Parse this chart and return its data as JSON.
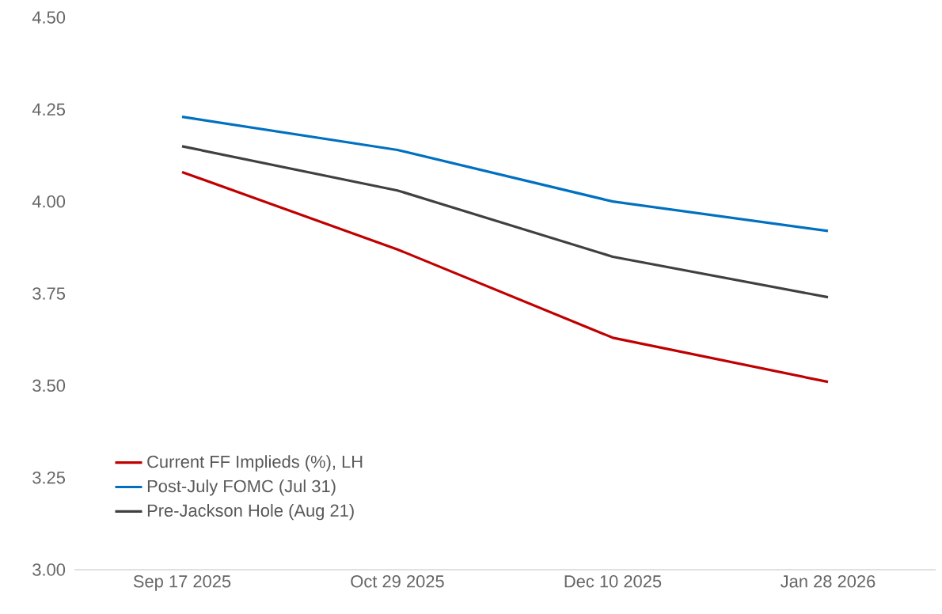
{
  "chart_data": {
    "type": "line",
    "categories": [
      "Sep 17 2025",
      "Oct 29 2025",
      "Dec 10 2025",
      "Jan 28 2026"
    ],
    "series": [
      {
        "name": "Current FF Implieds (%), LH",
        "color": "#c00000",
        "values": [
          4.08,
          3.87,
          3.63,
          3.51
        ]
      },
      {
        "name": "Post-July FOMC (Jul 31)",
        "color": "#0070c0",
        "values": [
          4.23,
          4.14,
          4.0,
          3.92
        ]
      },
      {
        "name": "Pre-Jackson Hole (Aug 21)",
        "color": "#404040",
        "values": [
          4.15,
          4.03,
          3.85,
          3.74
        ]
      }
    ],
    "ylim": [
      3.0,
      4.5
    ],
    "yticks": [
      {
        "value": 3.0,
        "label": "3.00"
      },
      {
        "value": 3.25,
        "label": "3.25"
      },
      {
        "value": 3.5,
        "label": "3.50"
      },
      {
        "value": 3.75,
        "label": "3.75"
      },
      {
        "value": 4.0,
        "label": "4.00"
      },
      {
        "value": 4.25,
        "label": "4.25"
      },
      {
        "value": 4.5,
        "label": "4.50"
      }
    ],
    "grid": false,
    "legend": "bottom left",
    "marker": "none",
    "line_style": "solid"
  }
}
